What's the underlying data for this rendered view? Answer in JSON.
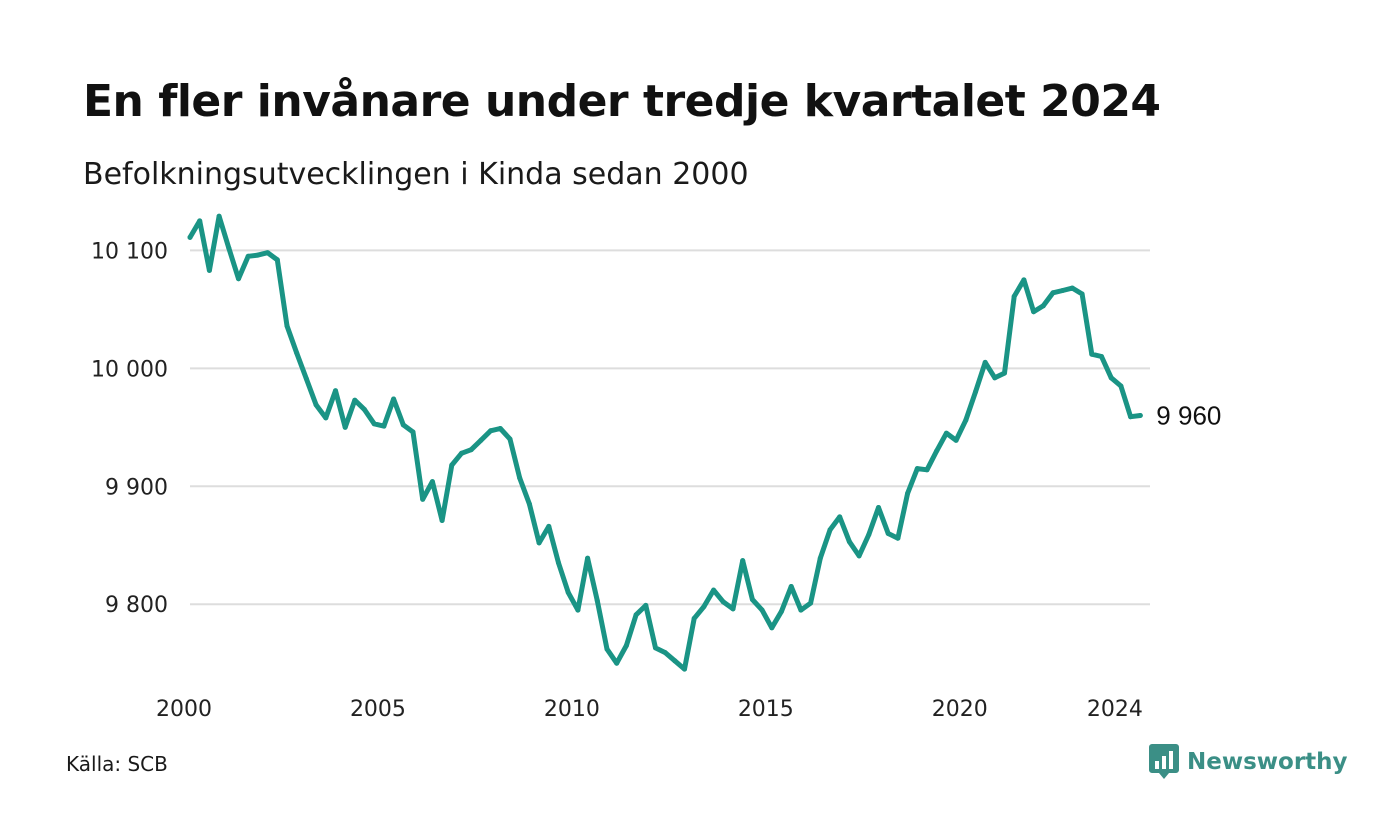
{
  "title": "En fler invånare under tredje kvartalet 2024",
  "subtitle": "Befolkningsutvecklingen i Kinda sedan 2000",
  "source": "Källa: SCB",
  "brand": {
    "name": "Newsworthy",
    "icon": "newsworthy-logo-icon",
    "color": "#3b8f86"
  },
  "chart_data": {
    "type": "line",
    "title": "En fler invånare under tredje kvartalet 2024",
    "subtitle": "Befolkningsutvecklingen i Kinda sedan 2000",
    "xlabel": "",
    "ylabel": "",
    "xlim": [
      2000,
      2024.75
    ],
    "ylim": [
      9740,
      10130
    ],
    "x_ticks": [
      2000,
      2005,
      2010,
      2015,
      2020,
      2024
    ],
    "x_tick_labels": [
      "2000",
      "2005",
      "2010",
      "2015",
      "2020",
      "2024"
    ],
    "y_ticks": [
      9800,
      9900,
      10000,
      10100
    ],
    "y_tick_labels": [
      "9 800",
      "9 900",
      "10 000",
      "10 100"
    ],
    "grid": "horizontal",
    "line_color": "#1a9485",
    "grid_color": "#dddddd",
    "end_label": "9 960",
    "series": [
      {
        "x_start": 2000.0,
        "x_step": 0.25,
        "values": [
          10111,
          10125,
          10083,
          10129,
          10102,
          10076,
          10095,
          10096,
          10098,
          10092,
          10036,
          10013,
          9991,
          9969,
          9958,
          9981,
          9950,
          9973,
          9965,
          9953,
          9951,
          9974,
          9952,
          9946,
          9889,
          9904,
          9871,
          9918,
          9928,
          9931,
          9939,
          9947,
          9949,
          9940,
          9907,
          9885,
          9852,
          9866,
          9835,
          9810,
          9795,
          9839,
          9803,
          9762,
          9750,
          9765,
          9791,
          9799,
          9763,
          9759,
          9752,
          9745,
          9788,
          9798,
          9812,
          9802,
          9796,
          9837,
          9804,
          9795,
          9780,
          9794,
          9815,
          9795,
          9801,
          9839,
          9863,
          9874,
          9853,
          9841,
          9859,
          9882,
          9860,
          9856,
          9894,
          9915,
          9914,
          9930,
          9945,
          9939,
          9956,
          9980,
          10005,
          9992,
          9996,
          10061,
          10075,
          10048,
          10053,
          10064,
          10066,
          10068,
          10063,
          10012,
          10010,
          9992,
          9985,
          9959,
          9960
        ]
      }
    ]
  }
}
